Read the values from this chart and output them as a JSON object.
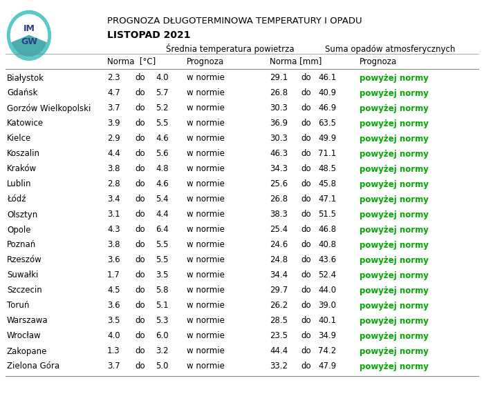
{
  "title_line1": "PROGNOZA DŁUGOTERMINOWA TEMPERATURY I OPADU",
  "title_line2": "LISTOPAD 2021",
  "header1": "Srednia temperatura powietrza",
  "header2": "Suma opadów atmosferycznych",
  "col_headers": [
    "Norma  [°C]",
    "Prognoza",
    "Norma [mm]",
    "Prognoza"
  ],
  "cities": [
    "Białystok",
    "Gdańsk",
    "Gorzów Wielkopolski",
    "Katowice",
    "Kielce",
    "Koszalin",
    "Kraków",
    "Lublin",
    "Łódź",
    "Olsztyn",
    "Opole",
    "Poznań",
    "Rzeszów",
    "Suwałki",
    "Szczecin",
    "Toruń",
    "Warszawa",
    "Wrocław",
    "Zakopane",
    "Zielona Góra"
  ],
  "temp_norma_low": [
    2.3,
    4.7,
    3.7,
    3.9,
    2.9,
    4.4,
    3.8,
    2.8,
    3.4,
    3.1,
    4.3,
    3.8,
    3.6,
    1.7,
    4.5,
    3.6,
    3.5,
    4.0,
    1.3,
    3.7
  ],
  "temp_norma_high": [
    4.0,
    5.7,
    5.2,
    5.5,
    4.6,
    5.6,
    4.8,
    4.6,
    5.4,
    4.4,
    6.4,
    5.5,
    5.5,
    3.5,
    5.8,
    5.1,
    5.3,
    6.0,
    3.2,
    5.0
  ],
  "temp_prognoza": [
    "w normie",
    "w normie",
    "w normie",
    "w normie",
    "w normie",
    "w normie",
    "w normie",
    "w normie",
    "w normie",
    "w normie",
    "w normie",
    "w normie",
    "w normie",
    "w normie",
    "w normie",
    "w normie",
    "w normie",
    "w normie",
    "w normie",
    "w normie"
  ],
  "precip_norma_low": [
    29.1,
    26.8,
    30.3,
    36.9,
    30.3,
    46.3,
    34.3,
    25.6,
    26.8,
    38.3,
    25.4,
    24.6,
    24.8,
    34.4,
    29.7,
    26.2,
    28.5,
    23.5,
    44.4,
    33.2
  ],
  "precip_norma_high": [
    46.1,
    40.9,
    46.9,
    63.5,
    49.9,
    71.1,
    48.5,
    45.8,
    47.1,
    51.5,
    46.8,
    40.8,
    43.6,
    52.4,
    44.0,
    39.0,
    40.1,
    34.9,
    74.2,
    47.9
  ],
  "precip_prognoza": [
    "powyżej normy",
    "powyżej normy",
    "powyżej normy",
    "powyżej normy",
    "powyżej normy",
    "powyżej normy",
    "powyżej normy",
    "powyżej normy",
    "powyżej normy",
    "powyżej normy",
    "powyżej normy",
    "powyżej normy",
    "powyżej normy",
    "powyżej normy",
    "powyżej normy",
    "powyżej normy",
    "powyżej normy",
    "powyżej normy",
    "powyżej normy",
    "powyżej normy"
  ],
  "green_color": "#00AA00",
  "bg_color": "#FFFFFF",
  "text_color": "#000000",
  "row_alt_color": "#F5F5F5"
}
